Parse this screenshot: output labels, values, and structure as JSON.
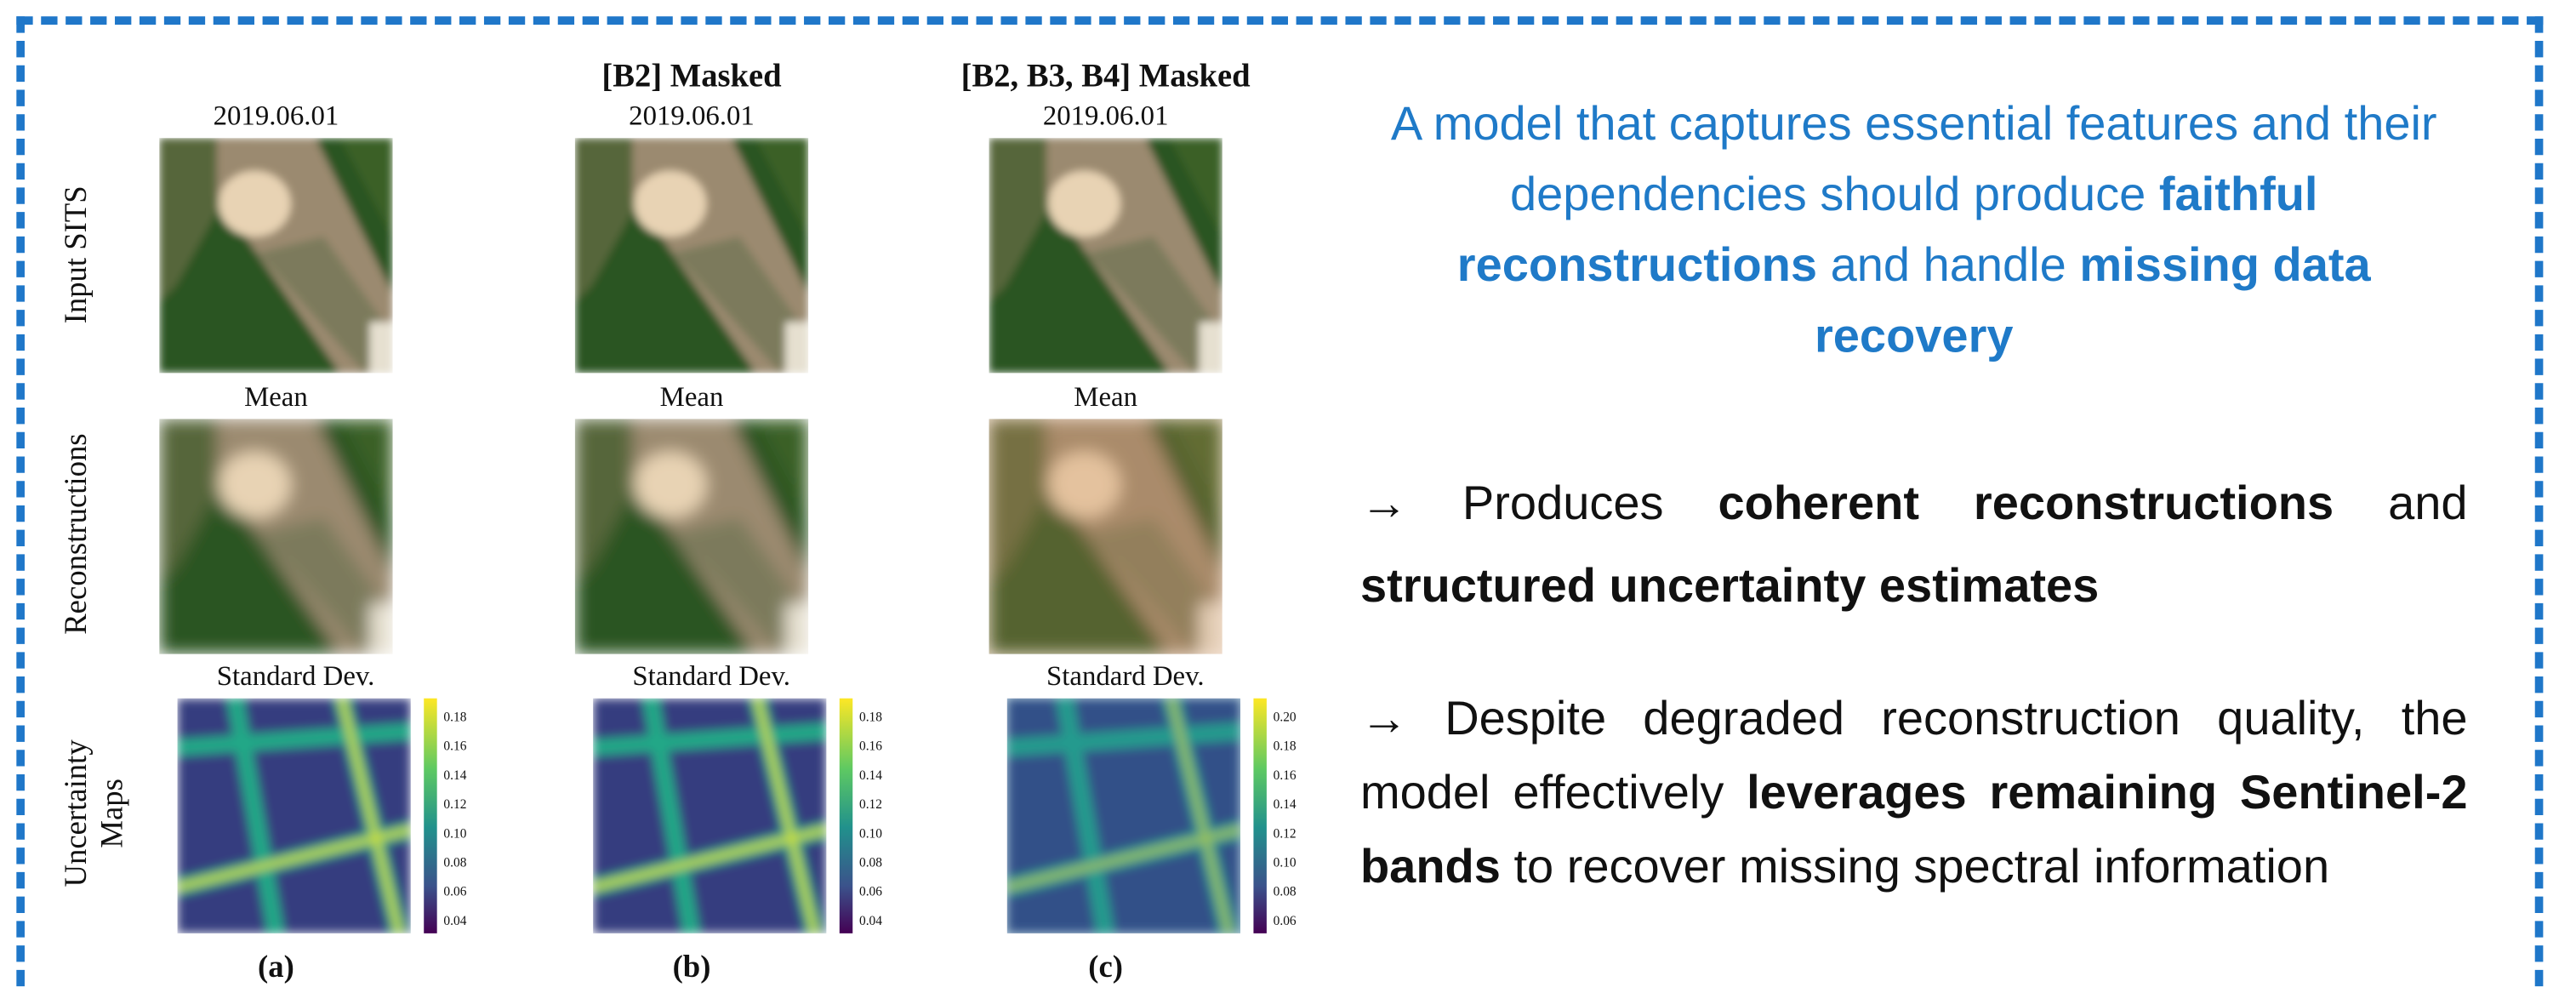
{
  "figure": {
    "row_labels": [
      {
        "lines": [
          "Input SITS"
        ]
      },
      {
        "lines": [
          "Reconstructions"
        ]
      },
      {
        "lines": [
          "Uncertainty",
          "Maps"
        ]
      }
    ],
    "columns": [
      {
        "date": "2019.06.01",
        "reconstruction_title": "Mean",
        "uncertainty_title": "Standard Dev.",
        "panel": "(a)",
        "colorbar_ticks": [
          "0.18",
          "0.16",
          "0.14",
          "0.12",
          "0.10",
          "0.08",
          "0.06",
          "0.04"
        ]
      },
      {
        "header": "[B2] Masked",
        "date": "2019.06.01",
        "reconstruction_title": "Mean",
        "uncertainty_title": "Standard Dev.",
        "panel": "(b)",
        "colorbar_ticks": [
          "0.18",
          "0.16",
          "0.14",
          "0.12",
          "0.10",
          "0.08",
          "0.06",
          "0.04"
        ]
      },
      {
        "header": "[B2, B3, B4] Masked",
        "date": "2019.06.01",
        "reconstruction_title": "Mean",
        "uncertainty_title": "Standard Dev.",
        "panel": "(c)",
        "colorbar_ticks": [
          "0.20",
          "0.18",
          "0.16",
          "0.14",
          "0.12",
          "0.10",
          "0.08",
          "0.06"
        ]
      }
    ]
  },
  "summary": [
    "A model that captures essential features and their dependencies should produce ",
    "faithful reconstructions",
    " and handle ",
    "missing data recovery"
  ],
  "bullets": [
    [
      "→ Produces ",
      "coherent reconstructions",
      " and ",
      "structured uncertainty estimates"
    ],
    [
      "→ Despite degraded reconstruction quality, the model effectively ",
      "leverages remaining Sentinel-2 bands",
      " to recover missing spectral information"
    ]
  ]
}
